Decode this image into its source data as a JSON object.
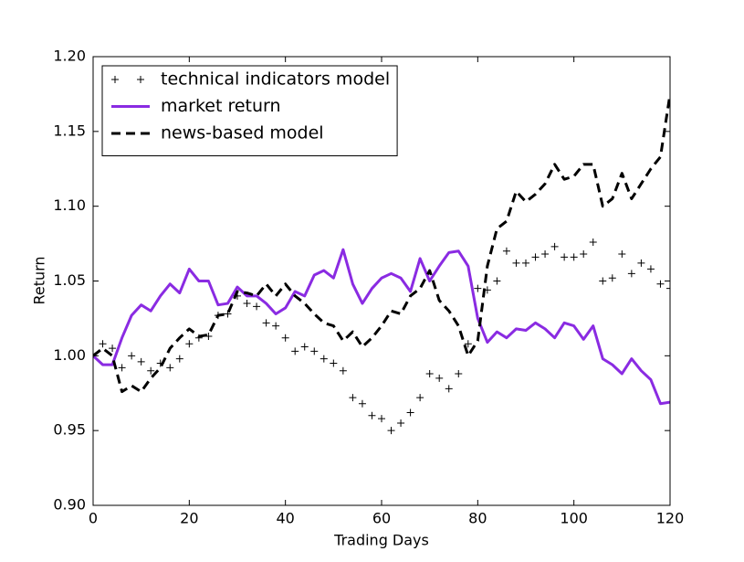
{
  "chart_data": {
    "type": "line",
    "x_label": "Trading Days",
    "y_label": "Return",
    "x": [
      0,
      2,
      4,
      6,
      8,
      10,
      12,
      14,
      16,
      18,
      20,
      22,
      24,
      26,
      28,
      30,
      32,
      34,
      36,
      38,
      40,
      42,
      44,
      46,
      48,
      50,
      52,
      54,
      56,
      58,
      60,
      62,
      64,
      66,
      68,
      70,
      72,
      74,
      76,
      78,
      80,
      82,
      84,
      86,
      88,
      90,
      92,
      94,
      96,
      98,
      100,
      102,
      104,
      106,
      108,
      110,
      112,
      114,
      116,
      118,
      120
    ],
    "series": [
      {
        "name": "technical indicators model",
        "color": "#000000",
        "marker": "+",
        "linestyle": "none",
        "values": [
          1.0,
          1.008,
          1.005,
          0.992,
          1.0,
          0.996,
          0.99,
          0.995,
          0.992,
          0.998,
          1.008,
          1.012,
          1.013,
          1.027,
          1.028,
          1.04,
          1.035,
          1.033,
          1.022,
          1.02,
          1.012,
          1.003,
          1.006,
          1.003,
          0.998,
          0.995,
          0.99,
          0.972,
          0.968,
          0.96,
          0.958,
          0.95,
          0.955,
          0.962,
          0.972,
          0.988,
          0.985,
          0.978,
          0.988,
          1.008,
          1.045,
          1.044,
          1.05,
          1.07,
          1.062,
          1.062,
          1.066,
          1.068,
          1.073,
          1.066,
          1.066,
          1.068,
          1.076,
          1.05,
          1.052,
          1.068,
          1.055,
          1.062,
          1.058,
          1.048,
          1.045
        ]
      },
      {
        "name": "market return",
        "color": "#8a2be2",
        "marker": "none",
        "linestyle": "solid",
        "values": [
          1.0,
          0.994,
          0.994,
          1.012,
          1.027,
          1.034,
          1.03,
          1.04,
          1.048,
          1.042,
          1.058,
          1.05,
          1.05,
          1.034,
          1.035,
          1.046,
          1.04,
          1.04,
          1.035,
          1.028,
          1.032,
          1.043,
          1.04,
          1.054,
          1.057,
          1.052,
          1.071,
          1.048,
          1.035,
          1.045,
          1.052,
          1.055,
          1.052,
          1.043,
          1.065,
          1.05,
          1.06,
          1.069,
          1.07,
          1.06,
          1.025,
          1.009,
          1.016,
          1.012,
          1.018,
          1.017,
          1.022,
          1.018,
          1.012,
          1.022,
          1.02,
          1.011,
          1.02,
          0.998,
          0.994,
          0.988,
          0.998,
          0.99,
          0.984,
          0.968,
          0.969
        ]
      },
      {
        "name": "news-based model",
        "color": "#000000",
        "marker": "none",
        "linestyle": "dashed",
        "values": [
          1.0,
          1.005,
          1.0,
          0.976,
          0.98,
          0.976,
          0.985,
          0.992,
          1.005,
          1.012,
          1.018,
          1.013,
          1.014,
          1.027,
          1.028,
          1.043,
          1.042,
          1.04,
          1.048,
          1.04,
          1.048,
          1.04,
          1.035,
          1.028,
          1.022,
          1.02,
          1.01,
          1.016,
          1.006,
          1.012,
          1.02,
          1.03,
          1.028,
          1.04,
          1.045,
          1.057,
          1.037,
          1.03,
          1.02,
          1.0,
          1.01,
          1.06,
          1.085,
          1.09,
          1.11,
          1.103,
          1.108,
          1.115,
          1.128,
          1.118,
          1.12,
          1.128,
          1.128,
          1.1,
          1.105,
          1.122,
          1.105,
          1.115,
          1.125,
          1.133,
          1.175
        ]
      }
    ],
    "xlim": [
      0,
      120
    ],
    "xticks": [
      0,
      20,
      40,
      60,
      80,
      100,
      120
    ],
    "ylim": [
      0.9,
      1.2
    ],
    "yticks": [
      {
        "value": 0.9,
        "label": "0.90"
      },
      0.95,
      {
        "value": 1.0,
        "label": "1.00"
      },
      1.05,
      {
        "value": 1.1,
        "label": "1.10"
      },
      1.15,
      {
        "value": 1.2,
        "label": "1.20"
      }
    ],
    "grid": false,
    "legend": "upper left"
  }
}
